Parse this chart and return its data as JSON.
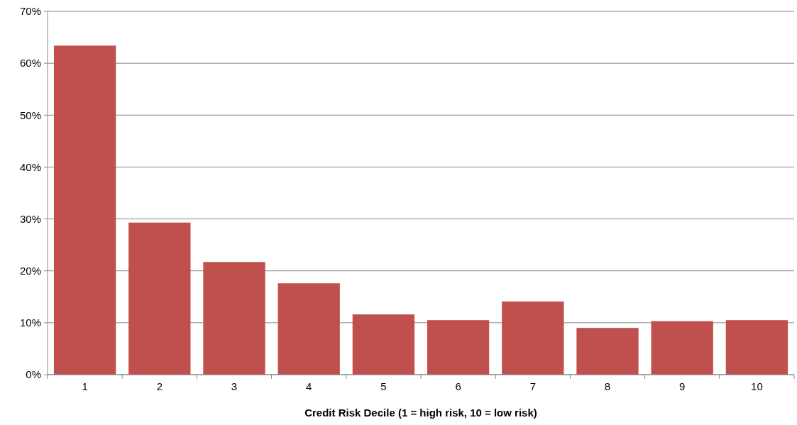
{
  "chart_data": {
    "type": "bar",
    "xlabel": "Credit Risk Decile (1 = high risk, 10 = low risk)",
    "categories": [
      "1",
      "2",
      "3",
      "4",
      "5",
      "6",
      "7",
      "8",
      "9",
      "10"
    ],
    "values": [
      63.4,
      29.3,
      21.7,
      17.6,
      11.6,
      10.5,
      14.1,
      9.0,
      10.3,
      10.5
    ],
    "color": "#c0504d",
    "ylim": [
      0,
      70
    ],
    "yticks": [
      {
        "value": 0,
        "label": "0%"
      },
      {
        "value": 10,
        "label": "10%"
      },
      {
        "value": 20,
        "label": "20%"
      },
      {
        "value": 30,
        "label": "30%"
      },
      {
        "value": 40,
        "label": "40%"
      },
      {
        "value": 50,
        "label": "50%"
      },
      {
        "value": 60,
        "label": "60%"
      },
      {
        "value": 70,
        "label": "70%"
      }
    ],
    "grid": "y"
  }
}
